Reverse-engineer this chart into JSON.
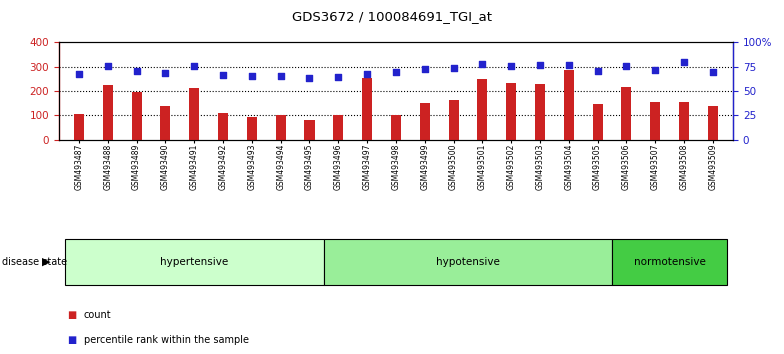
{
  "title": "GDS3672 / 100084691_TGI_at",
  "samples": [
    "GSM493487",
    "GSM493488",
    "GSM493489",
    "GSM493490",
    "GSM493491",
    "GSM493492",
    "GSM493493",
    "GSM493494",
    "GSM493495",
    "GSM493496",
    "GSM493497",
    "GSM493498",
    "GSM493499",
    "GSM493500",
    "GSM493501",
    "GSM493502",
    "GSM493503",
    "GSM493504",
    "GSM493505",
    "GSM493506",
    "GSM493507",
    "GSM493508",
    "GSM493509"
  ],
  "counts": [
    105,
    225,
    197,
    138,
    213,
    112,
    95,
    100,
    82,
    100,
    253,
    100,
    150,
    165,
    248,
    232,
    228,
    287,
    148,
    218,
    157,
    155,
    138
  ],
  "percentiles": [
    270,
    302,
    283,
    275,
    305,
    265,
    263,
    263,
    256,
    258,
    270,
    278,
    290,
    297,
    313,
    305,
    307,
    308,
    283,
    302,
    288,
    320,
    280
  ],
  "groups": [
    {
      "name": "hypertensive",
      "start": 0,
      "end": 9,
      "color": "#ccffcc"
    },
    {
      "name": "hypotensive",
      "start": 9,
      "end": 19,
      "color": "#99ee99"
    },
    {
      "name": "normotensive",
      "start": 19,
      "end": 23,
      "color": "#44cc44"
    }
  ],
  "bar_color": "#cc2222",
  "dot_color": "#2222cc",
  "label_count": "count",
  "label_percentile": "percentile rank within the sample",
  "disease_state_label": "disease state",
  "yticks_right_labels": [
    "0",
    "25",
    "50",
    "75",
    "100%"
  ]
}
